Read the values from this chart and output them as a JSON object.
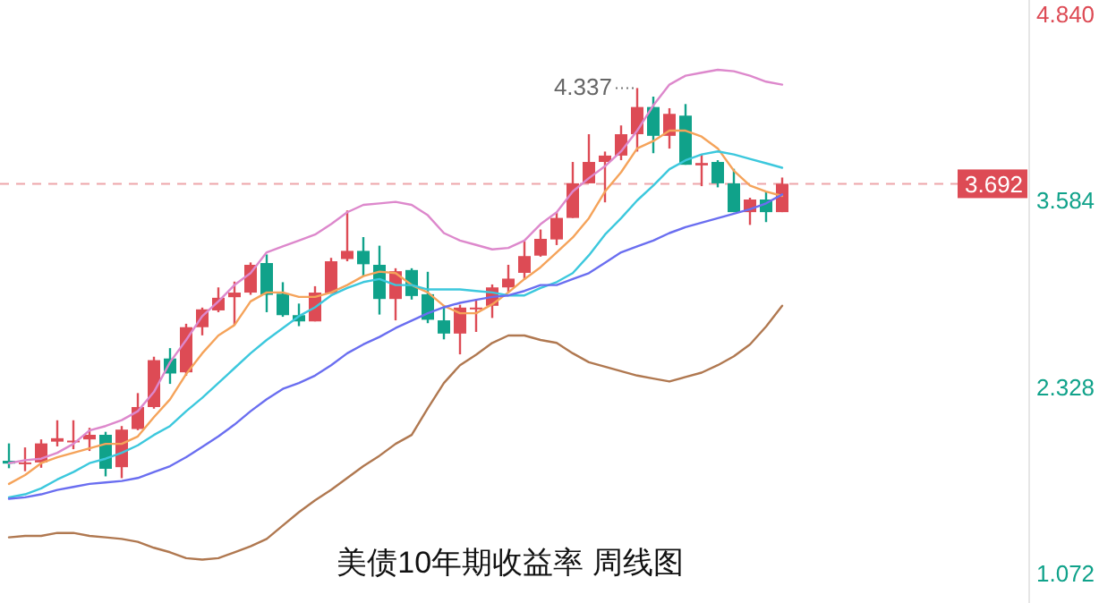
{
  "chart_data": {
    "type": "candlestick",
    "title": "美债10年期收益率  周线图",
    "categories": [
      null,
      null,
      null,
      null,
      null,
      null,
      null,
      null,
      null,
      null,
      null,
      null,
      null,
      null,
      null,
      null,
      null,
      null,
      null,
      null,
      null,
      null,
      null,
      null,
      null,
      null,
      null,
      null,
      null,
      null,
      null,
      null,
      null,
      null,
      null,
      null,
      null,
      null,
      null,
      null,
      null,
      null,
      null,
      null,
      null,
      null,
      null,
      null,
      null
    ],
    "ohlc": [
      [
        1.826,
        1.943,
        1.776,
        1.807
      ],
      [
        1.807,
        1.916,
        1.756,
        1.815
      ],
      [
        1.815,
        1.97,
        1.779,
        1.943
      ],
      [
        1.955,
        2.099,
        1.923,
        1.978
      ],
      [
        1.951,
        2.099,
        1.904,
        1.962
      ],
      [
        1.97,
        2.048,
        1.892,
        2.001
      ],
      [
        2.001,
        2.021,
        1.721,
        1.772
      ],
      [
        1.783,
        2.06,
        1.709,
        2.036
      ],
      [
        2.04,
        2.282,
        2.032,
        2.188
      ],
      [
        2.188,
        2.527,
        2.177,
        2.504
      ],
      [
        2.515,
        2.585,
        2.344,
        2.414
      ],
      [
        2.422,
        2.749,
        2.399,
        2.726
      ],
      [
        2.726,
        2.858,
        2.671,
        2.846
      ],
      [
        2.839,
        2.994,
        2.827,
        2.924
      ],
      [
        2.928,
        3.033,
        2.741,
        2.959
      ],
      [
        2.959,
        3.162,
        2.944,
        3.146
      ],
      [
        3.158,
        3.216,
        2.827,
        2.944
      ],
      [
        2.951,
        3.029,
        2.796,
        2.807
      ],
      [
        2.807,
        2.885,
        2.733,
        2.765
      ],
      [
        2.765,
        3.002,
        2.765,
        2.959
      ],
      [
        2.955,
        3.193,
        2.951,
        3.17
      ],
      [
        3.185,
        3.512,
        3.17,
        3.24
      ],
      [
        3.24,
        3.333,
        3.068,
        3.15
      ],
      [
        3.146,
        3.275,
        2.811,
        2.916
      ],
      [
        2.916,
        3.123,
        2.772,
        3.103
      ],
      [
        3.111,
        3.123,
        2.912,
        2.936
      ],
      [
        2.948,
        3.099,
        2.753,
        2.776
      ],
      [
        2.772,
        2.866,
        2.644,
        2.683
      ],
      [
        2.683,
        2.877,
        2.543,
        2.858
      ],
      [
        2.846,
        2.916,
        2.694,
        2.858
      ],
      [
        2.87,
        3.014,
        2.788,
        2.994
      ],
      [
        2.994,
        3.146,
        2.963,
        3.053
      ],
      [
        3.092,
        3.306,
        3.045,
        3.205
      ],
      [
        3.208,
        3.384,
        3.201,
        3.321
      ],
      [
        3.317,
        3.501,
        3.279,
        3.462
      ],
      [
        3.462,
        3.839,
        3.462,
        3.695
      ],
      [
        3.695,
        4.026,
        3.695,
        3.839
      ],
      [
        3.839,
        3.909,
        3.567,
        3.882
      ],
      [
        3.882,
        4.085,
        3.851,
        4.026
      ],
      [
        4.026,
        4.337,
        3.909,
        4.209
      ],
      [
        4.209,
        4.279,
        3.898,
        4.015
      ],
      [
        4.015,
        4.201,
        3.929,
        4.163
      ],
      [
        4.151,
        4.229,
        3.82,
        3.82
      ],
      [
        3.816,
        3.89,
        3.676,
        3.832
      ],
      [
        3.839,
        3.851,
        3.668,
        3.695
      ],
      [
        3.695,
        3.793,
        3.501,
        3.501
      ],
      [
        3.501,
        3.598,
        3.415,
        3.586
      ],
      [
        3.586,
        3.637,
        3.434,
        3.501
      ],
      [
        3.501,
        3.734,
        3.501,
        3.692
      ]
    ],
    "colors": [
      "#10a28a",
      "#dd4b55",
      "#dd4b55",
      "#dd4b55",
      "#dd4b55",
      "#dd4b55",
      "#10a28a",
      "#dd4b55",
      "#dd4b55",
      "#dd4b55",
      "#10a28a",
      "#dd4b55",
      "#dd4b55",
      "#dd4b55",
      "#dd4b55",
      "#dd4b55",
      "#10a28a",
      "#10a28a",
      "#10a28a",
      "#dd4b55",
      "#dd4b55",
      "#dd4b55",
      "#10a28a",
      "#10a28a",
      "#dd4b55",
      "#10a28a",
      "#10a28a",
      "#10a28a",
      "#dd4b55",
      "#dd4b55",
      "#dd4b55",
      "#dd4b55",
      "#dd4b55",
      "#dd4b55",
      "#dd4b55",
      "#dd4b55",
      "#dd4b55",
      "#dd4b55",
      "#dd4b55",
      "#dd4b55",
      "#10a28a",
      "#dd4b55",
      "#10a28a",
      "#dd4b55",
      "#10a28a",
      "#10a28a",
      "#dd4b55",
      "#10a28a",
      "#dd4b55"
    ],
    "series": [
      {
        "type": "line",
        "color": "#dd88cc",
        "values": [
          1.81,
          1.83,
          1.84,
          1.88,
          1.94,
          2.03,
          2.06,
          2.1,
          2.16,
          2.29,
          2.49,
          2.64,
          2.8,
          2.9,
          3.01,
          3.09,
          3.23,
          3.27,
          3.31,
          3.35,
          3.42,
          3.5,
          3.55,
          3.56,
          3.57,
          3.55,
          3.48,
          3.36,
          3.31,
          3.28,
          3.25,
          3.26,
          3.31,
          3.42,
          3.5,
          3.64,
          3.73,
          3.81,
          3.91,
          4.05,
          4.22,
          4.36,
          4.42,
          4.44,
          4.46,
          4.45,
          4.42,
          4.38,
          4.36
        ]
      },
      {
        "type": "line",
        "color": "#f5a35a",
        "values": [
          1.67,
          1.73,
          1.81,
          1.85,
          1.88,
          1.91,
          1.94,
          1.94,
          1.99,
          2.12,
          2.24,
          2.41,
          2.55,
          2.67,
          2.74,
          2.9,
          2.96,
          2.96,
          2.93,
          2.93,
          2.96,
          3.01,
          3.07,
          3.1,
          3.09,
          3.01,
          2.96,
          2.87,
          2.82,
          2.82,
          2.88,
          2.96,
          3.05,
          3.13,
          3.23,
          3.33,
          3.46,
          3.64,
          3.77,
          3.93,
          3.98,
          4.05,
          4.05,
          4.01,
          3.93,
          3.78,
          3.68,
          3.64,
          3.61
        ]
      },
      {
        "type": "line",
        "color": "#3cc8dd",
        "values": [
          1.58,
          1.6,
          1.64,
          1.7,
          1.75,
          1.81,
          1.84,
          1.88,
          1.93,
          2.0,
          2.06,
          2.16,
          2.25,
          2.35,
          2.45,
          2.55,
          2.64,
          2.72,
          2.8,
          2.86,
          2.94,
          2.99,
          3.03,
          3.05,
          3.01,
          3.01,
          2.98,
          2.98,
          2.98,
          2.97,
          2.96,
          2.94,
          2.94,
          2.99,
          3.03,
          3.09,
          3.21,
          3.35,
          3.46,
          3.58,
          3.68,
          3.79,
          3.85,
          3.89,
          3.91,
          3.89,
          3.86,
          3.83,
          3.8
        ]
      },
      {
        "type": "line",
        "color": "#6a6ef0",
        "values": [
          1.57,
          1.58,
          1.6,
          1.63,
          1.65,
          1.67,
          1.68,
          1.69,
          1.71,
          1.75,
          1.79,
          1.85,
          1.92,
          1.99,
          2.07,
          2.16,
          2.24,
          2.31,
          2.35,
          2.4,
          2.47,
          2.55,
          2.61,
          2.66,
          2.72,
          2.77,
          2.82,
          2.86,
          2.89,
          2.91,
          2.93,
          2.94,
          2.97,
          3.01,
          3.01,
          3.05,
          3.09,
          3.16,
          3.23,
          3.27,
          3.31,
          3.36,
          3.4,
          3.43,
          3.46,
          3.49,
          3.52,
          3.56,
          3.62
        ]
      },
      {
        "type": "line",
        "color": "#b07850",
        "values": [
          1.31,
          1.32,
          1.32,
          1.34,
          1.34,
          1.32,
          1.31,
          1.3,
          1.28,
          1.24,
          1.21,
          1.17,
          1.16,
          1.17,
          1.21,
          1.25,
          1.3,
          1.39,
          1.48,
          1.56,
          1.63,
          1.71,
          1.79,
          1.86,
          1.94,
          2.0,
          2.18,
          2.35,
          2.47,
          2.54,
          2.62,
          2.67,
          2.67,
          2.64,
          2.62,
          2.55,
          2.49,
          2.46,
          2.43,
          2.4,
          2.38,
          2.36,
          2.39,
          2.42,
          2.47,
          2.53,
          2.61,
          2.73,
          2.87
        ]
      }
    ],
    "ylim": [
      0.868,
      4.93
    ],
    "yticks": [
      {
        "value": 4.84,
        "label": "4.840"
      },
      3.584,
      2.328,
      1.072
    ],
    "ref_lines": [
      {
        "axis": "y",
        "value": 3.692,
        "label": "3.692",
        "color": "#dd4b55",
        "line_style": "dashed"
      }
    ],
    "annotations": [
      "4.337"
    ],
    "tick_labels": "y"
  }
}
